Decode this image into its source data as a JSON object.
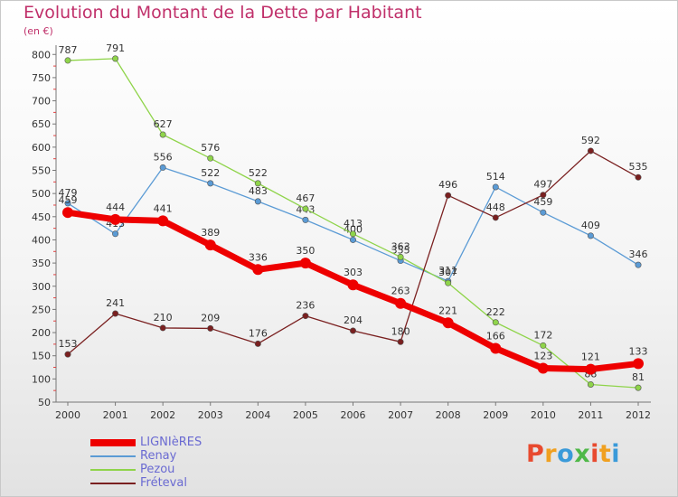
{
  "title": "Evolution du Montant de la Dette par Habitant",
  "subtitle": "(en €)",
  "logo": {
    "letters": [
      "P",
      "r",
      "o",
      "x",
      "i",
      "t",
      "i"
    ],
    "colors": [
      "#e84a2f",
      "#f0a020",
      "#3a9ad9",
      "#4fb848",
      "#e84a2f",
      "#f0a020",
      "#3a9ad9"
    ]
  },
  "chart_data": {
    "type": "line",
    "x": [
      "2000",
      "2001",
      "2002",
      "2003",
      "2004",
      "2005",
      "2006",
      "2007",
      "2008",
      "2009",
      "2010",
      "2011",
      "2012"
    ],
    "yticks": [
      50,
      100,
      150,
      200,
      250,
      300,
      350,
      400,
      450,
      500,
      550,
      600,
      650,
      700,
      750,
      800
    ],
    "ylim": [
      50,
      820
    ],
    "grid": false,
    "legend_position": "bottom-left",
    "series": [
      {
        "name": "Renay",
        "color": "#5b9bd5",
        "values": [
          479,
          413,
          556,
          522,
          483,
          443,
          400,
          355,
          311,
          514,
          459,
          409,
          346
        ]
      },
      {
        "name": "Pezou",
        "color": "#8fd44a",
        "values": [
          787,
          791,
          627,
          576,
          522,
          467,
          413,
          363,
          307,
          222,
          172,
          88,
          81
        ]
      },
      {
        "name": "Fréteval",
        "color": "#7a2020",
        "values": [
          153,
          241,
          210,
          209,
          176,
          236,
          204,
          180,
          496,
          448,
          497,
          592,
          535
        ]
      },
      {
        "name": "LIGNIèRES",
        "color": "#ee0000",
        "values": [
          459,
          444,
          441,
          389,
          336,
          350,
          303,
          263,
          221,
          166,
          123,
          121,
          133
        ]
      }
    ],
    "legend_order": [
      "LIGNIèRES",
      "Renay",
      "Pezou",
      "Fréteval"
    ]
  }
}
